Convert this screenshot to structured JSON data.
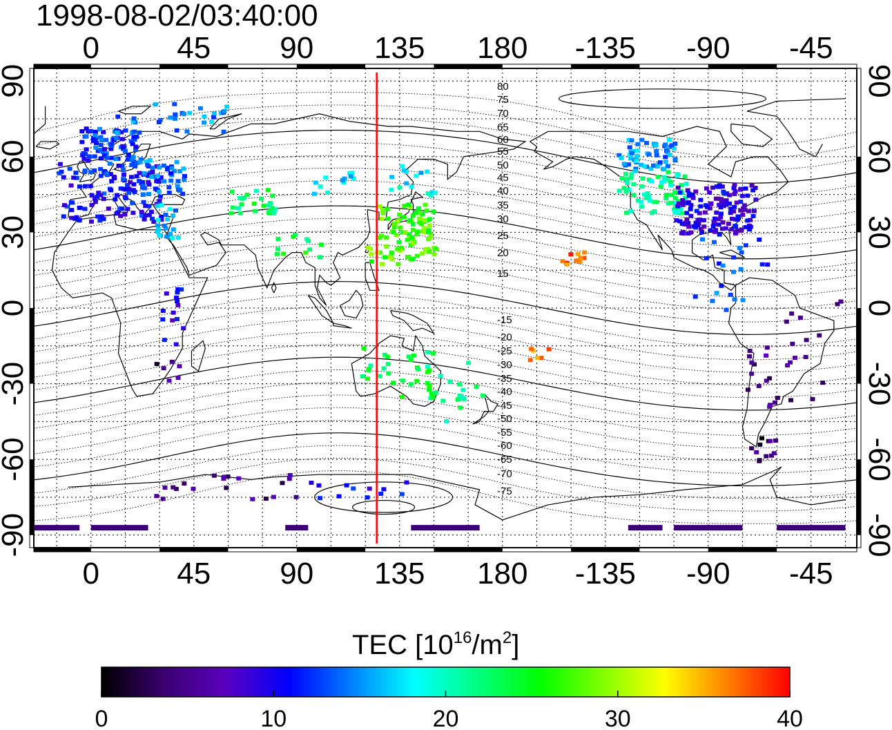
{
  "title": "1998-08-02/03:40:00",
  "map": {
    "top_lon_labels": [
      "0",
      "45",
      "90",
      "135",
      "180",
      "-135",
      "-90",
      "-45"
    ],
    "bottom_lon_labels": [
      "0",
      "45",
      "90",
      "135",
      "180",
      "-135",
      "-90",
      "-45"
    ],
    "left_lat_labels": [
      "90",
      "60",
      "30",
      "0",
      "-30",
      "-60",
      "-90"
    ],
    "right_lat_labels": [
      "90",
      "60",
      "30",
      "0",
      "-30",
      "-60",
      "-90"
    ],
    "lon_ticks": [
      0,
      45,
      90,
      135,
      180,
      -135,
      -90,
      -45
    ],
    "lat_ticks": [
      90,
      60,
      30,
      0,
      -30,
      -60,
      -90
    ],
    "lon_range": [
      -25,
      335
    ],
    "lat_range": [
      -95,
      95
    ],
    "grid": "dotted, every 15 degrees",
    "current_meridian_lon": 125,
    "current_meridian_color": "#ff0000",
    "magnetic_latitude_labels": [
      "80",
      "75",
      "70",
      "65",
      "60",
      "55",
      "50",
      "45",
      "40",
      "35",
      "30",
      "25",
      "20",
      "15",
      "-15",
      "-20",
      "-25",
      "-30",
      "-35",
      "-40",
      "-45",
      "-50",
      "-55",
      "-60",
      "-65",
      "-70",
      "-75"
    ]
  },
  "colorbar": {
    "title_prefix": "TEC  [10",
    "title_exp": "16",
    "title_mid": "/m",
    "title_exp2": "2",
    "title_suffix": "]",
    "min": 0,
    "max": 40,
    "tick_labels": [
      "0",
      "10",
      "20",
      "30",
      "40"
    ],
    "colors": [
      "#000000",
      "#3a0070",
      "#5a00c0",
      "#0000ff",
      "#0080ff",
      "#00ffff",
      "#00ff80",
      "#00ff00",
      "#80ff00",
      "#ffff00",
      "#ff8000",
      "#ff0000"
    ]
  }
}
